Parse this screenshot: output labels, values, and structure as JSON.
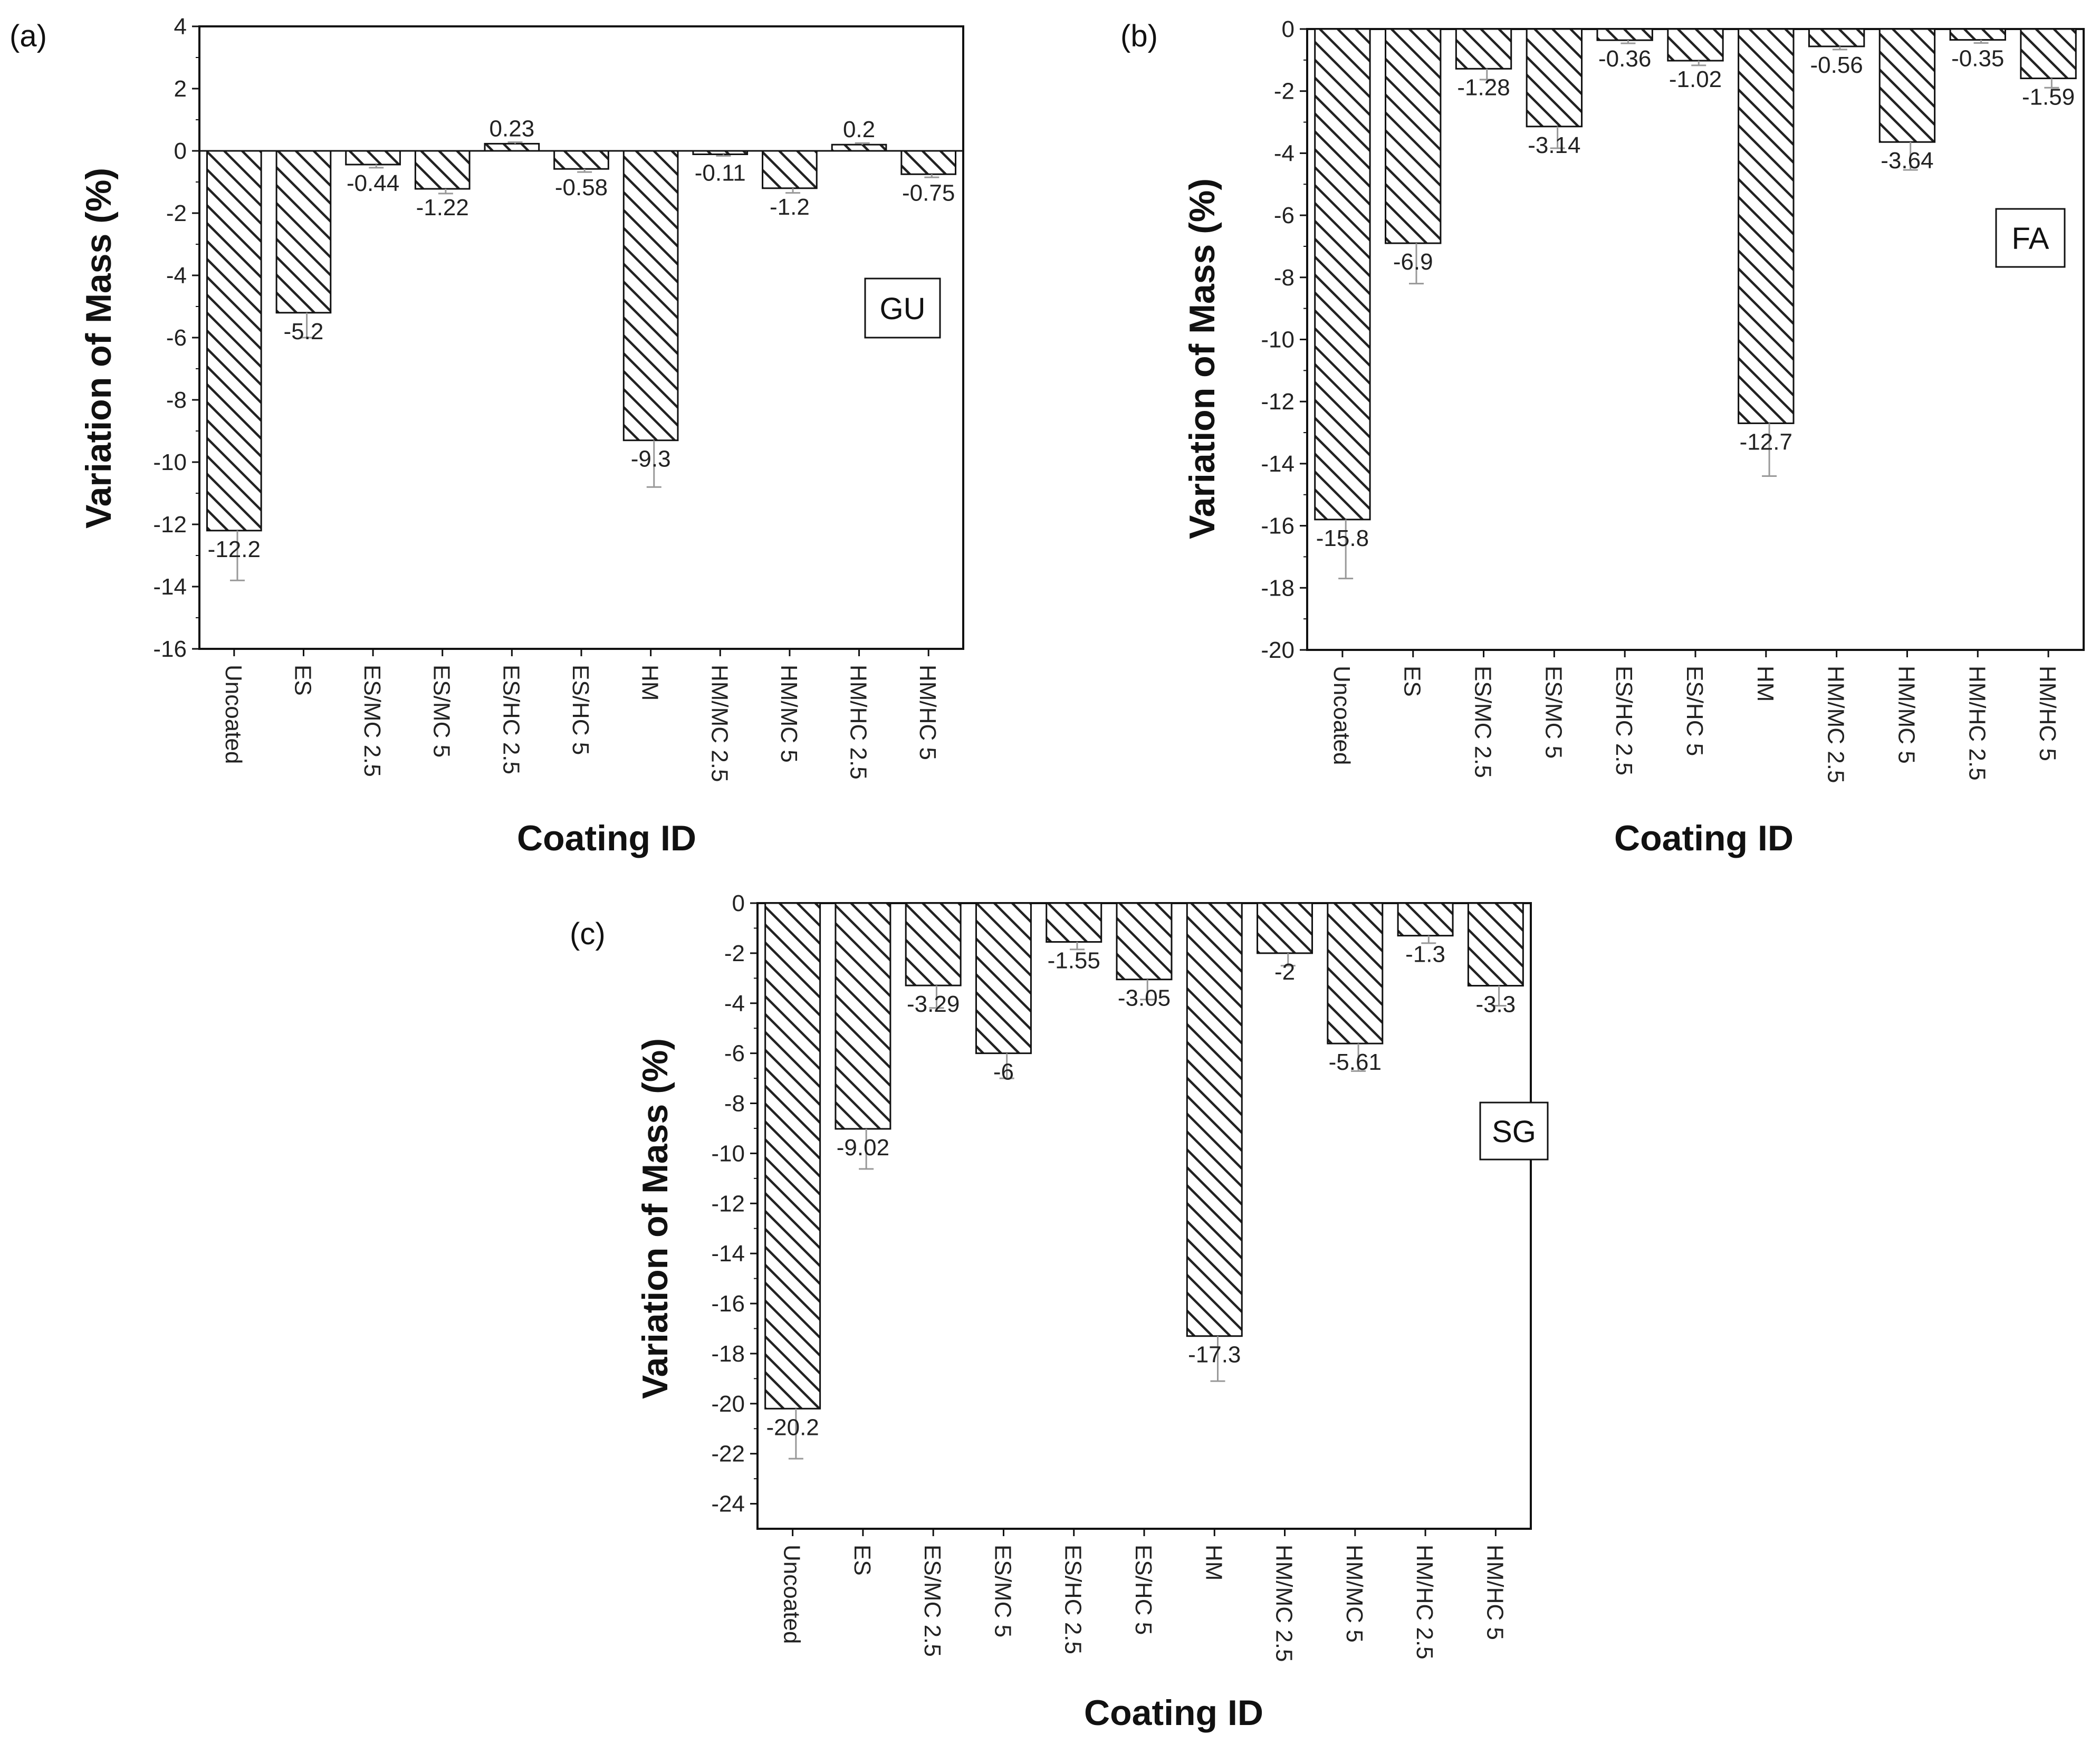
{
  "figure": {
    "background": "#ffffff",
    "bar_fill": "#ffffff",
    "hatch_color": "#222222",
    "error_bar_color": "#999999"
  },
  "chart_data": [
    {
      "type": "bar",
      "panel": "(a)",
      "tag": "GU",
      "xlabel": "Coating ID",
      "ylabel": "Variation of Mass (%)",
      "ylim": [
        -16,
        4
      ],
      "yticks": [
        4,
        2,
        0,
        -2,
        -4,
        -6,
        -8,
        -10,
        -12,
        -14,
        -16
      ],
      "categories": [
        "Uncoated",
        "ES",
        "ES/MC 2.5",
        "ES/MC 5",
        "ES/HC 2.5",
        "ES/HC 5",
        "HM",
        "HM/MC 2.5",
        "HM/MC 5",
        "HM/HC 2.5",
        "HM/HC 5"
      ],
      "values": [
        -12.2,
        -5.2,
        -0.44,
        -1.22,
        0.23,
        -0.58,
        -9.3,
        -0.11,
        -1.2,
        0.2,
        -0.75
      ],
      "labels": [
        "-12.2",
        "-5.2",
        "-0.44",
        "-1.22",
        "0.23",
        "-0.58",
        "-9.3",
        "-0.11",
        "-1.2",
        "0.2",
        "-0.75"
      ],
      "errors": [
        1.6,
        0.8,
        0.1,
        0.15,
        0.05,
        0.1,
        1.5,
        0.05,
        0.15,
        0.05,
        0.1
      ]
    },
    {
      "type": "bar",
      "panel": "(b)",
      "tag": "FA",
      "xlabel": "Coating ID",
      "ylabel": "Variation of Mass (%)",
      "ylim": [
        -20,
        0
      ],
      "yticks": [
        0,
        -2,
        -4,
        -6,
        -8,
        -10,
        -12,
        -14,
        -16,
        -18,
        -20
      ],
      "categories": [
        "Uncoated",
        "ES",
        "ES/MC 2.5",
        "ES/MC 5",
        "ES/HC 2.5",
        "ES/HC 5",
        "HM",
        "HM/MC 2.5",
        "HM/MC 5",
        "HM/HC 2.5",
        "HM/HC 5"
      ],
      "values": [
        -15.8,
        -6.9,
        -1.28,
        -3.14,
        -0.36,
        -1.02,
        -12.7,
        -0.56,
        -3.64,
        -0.35,
        -1.59
      ],
      "labels": [
        "-15.8",
        "-6.9",
        "-1.28",
        "-3.14",
        "-0.36",
        "-1.02",
        "-12.7",
        "-0.56",
        "-3.64",
        "-0.35",
        "-1.59"
      ],
      "errors": [
        1.9,
        1.3,
        0.35,
        0.7,
        0.1,
        0.15,
        1.7,
        0.1,
        0.9,
        0.1,
        0.3
      ]
    },
    {
      "type": "bar",
      "panel": "(c)",
      "tag": "SG",
      "xlabel": "Coating ID",
      "ylabel": "Variation of Mass (%)",
      "ylim": [
        -25,
        0
      ],
      "yticks": [
        0,
        -2,
        -4,
        -6,
        -8,
        -10,
        -12,
        -14,
        -16,
        -18,
        -20,
        -22,
        -24
      ],
      "categories": [
        "Uncoated",
        "ES",
        "ES/MC 2.5",
        "ES/MC 5",
        "ES/HC 2.5",
        "ES/HC 5",
        "HM",
        "HM/MC 2.5",
        "HM/MC 5",
        "HM/HC 2.5",
        "HM/HC 5"
      ],
      "values": [
        -20.2,
        -9.02,
        -3.29,
        -6,
        -1.55,
        -3.05,
        -17.3,
        -2,
        -5.61,
        -1.3,
        -3.3
      ],
      "labels": [
        "-20.2",
        "-9.02",
        "-3.29",
        "-6",
        "-1.55",
        "-3.05",
        "-17.3",
        "-2",
        "-5.61",
        "-1.3",
        "-3.3"
      ],
      "errors": [
        2.0,
        1.6,
        0.9,
        1.0,
        0.3,
        0.8,
        1.8,
        0.5,
        1.1,
        0.3,
        0.8
      ]
    }
  ]
}
